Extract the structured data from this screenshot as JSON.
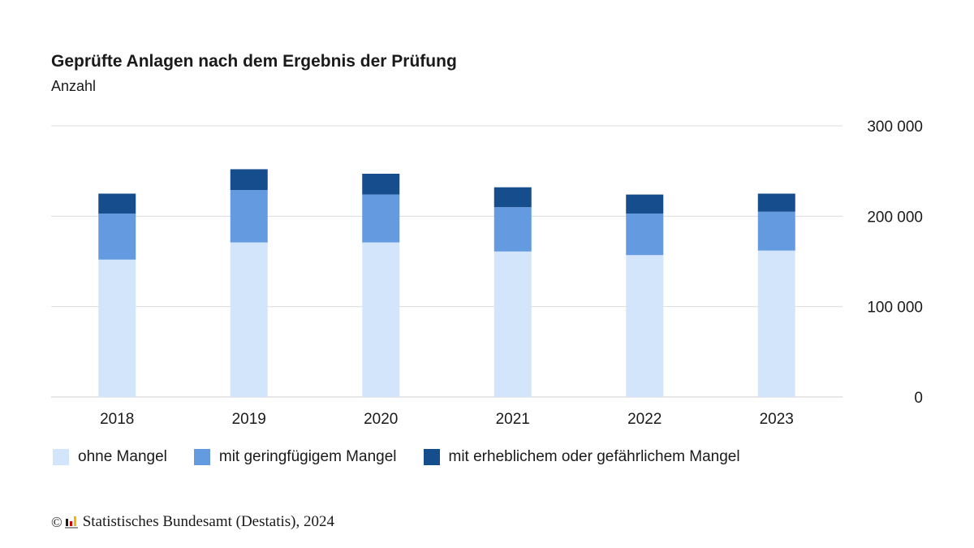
{
  "header": {
    "title": "Geprüfte Anlagen nach dem Ergebnis der Prüfung",
    "subtitle": "Anzahl"
  },
  "legend": [
    {
      "label": "ohne Mangel",
      "color": "#d3e5fb"
    },
    {
      "label": "mit geringfügigem Mangel",
      "color": "#649be0"
    },
    {
      "label": "mit erheblichem oder gefährlichem Mangel",
      "color": "#164d8d"
    }
  ],
  "footer": {
    "copyright_symbol": "©",
    "text": "Statistisches Bundesamt (Destatis), 2024",
    "logo_icon": "destatis-logo-icon"
  },
  "chart_data": {
    "type": "bar",
    "stacked": true,
    "title": "Geprüfte Anlagen nach dem Ergebnis der Prüfung",
    "subtitle": "Anzahl",
    "xlabel": "",
    "ylabel": "Anzahl",
    "categories": [
      "2018",
      "2019",
      "2020",
      "2021",
      "2022",
      "2023"
    ],
    "series": [
      {
        "name": "ohne Mangel",
        "color": "#d3e5fb",
        "values": [
          152000,
          171000,
          171000,
          161000,
          157000,
          162000
        ]
      },
      {
        "name": "mit geringfügigem Mangel",
        "color": "#649be0",
        "values": [
          51000,
          58000,
          53000,
          49000,
          46000,
          43000
        ]
      },
      {
        "name": "mit erheblichem oder gefährlichem Mangel",
        "color": "#164d8d",
        "values": [
          22000,
          23000,
          23000,
          22000,
          21000,
          20000
        ]
      }
    ],
    "ylim": [
      0,
      300000
    ],
    "yticks": [
      0,
      100000,
      200000,
      300000
    ],
    "ytick_labels": [
      "0",
      "100 000",
      "200 000",
      "300 000"
    ],
    "y_axis_position": "right",
    "grid": true,
    "legend_position": "bottom-left"
  }
}
